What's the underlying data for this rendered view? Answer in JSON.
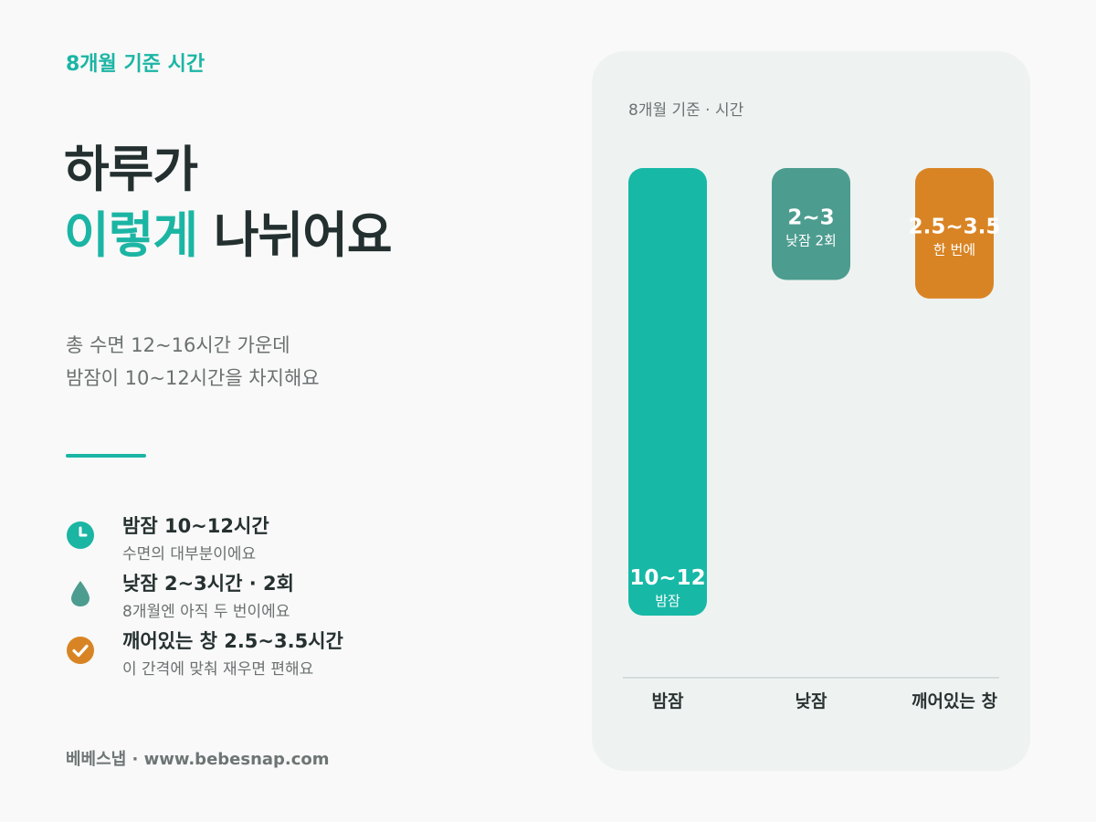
{
  "eyebrow": "8개월 기준 시간",
  "headline": {
    "line1": "하루가",
    "accent": "이렇게",
    "rest": " 나뉘어요"
  },
  "subtext": {
    "line1": "총 수면 12~16시간 가운데",
    "line2": "밤잠이 10~12시간을 차지해요"
  },
  "legend": [
    {
      "icon": "clock-icon",
      "color": "#1bb5a4",
      "title": "밤잠 10~12시간",
      "desc": "수면의 대부분이에요"
    },
    {
      "icon": "droplet-icon",
      "color": "#4c9c8f",
      "title": "낮잠 2~3시간 · 2회",
      "desc": "8개월엔 아직 두 번이에요"
    },
    {
      "icon": "check-icon",
      "color": "#d98424",
      "title": "깨어있는 창 2.5~3.5시간",
      "desc": "이 간격에 맞춰 재우면 편해요"
    }
  ],
  "footer": "베베스냅 · www.bebesnap.com",
  "card": {
    "caption": "8개월 기준 · 시간"
  },
  "chart_data": {
    "type": "bar",
    "title": "8개월 기준 · 시간",
    "categories": [
      "밤잠",
      "낮잠",
      "깨어있는 창"
    ],
    "values": [
      [
        10,
        12
      ],
      [
        2,
        3
      ],
      [
        2.5,
        3.5
      ]
    ],
    "value_labels": [
      "10~12",
      "2~3",
      "2.5~3.5"
    ],
    "sub_labels": [
      "밤잠",
      "낮잠 2회",
      "한 번에"
    ],
    "colors": [
      "#17b8a6",
      "#4c9c8f",
      "#d98424"
    ],
    "ylim": [
      0,
      12
    ],
    "grid": false
  }
}
